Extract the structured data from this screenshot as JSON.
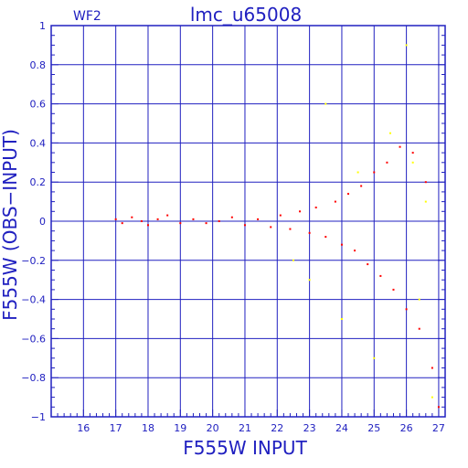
{
  "chart_data": {
    "type": "scatter",
    "panel_label": "WF2",
    "title": "lmc_u65008",
    "xlabel": "F555W  INPUT",
    "ylabel": "F555W  (OBS−INPUT)",
    "xlim": [
      15,
      27.2
    ],
    "ylim": [
      -1,
      1
    ],
    "x_ticks": [
      16,
      17,
      18,
      19,
      20,
      21,
      22,
      23,
      24,
      25,
      26,
      27
    ],
    "y_ticks": [
      -1,
      -0.8,
      -0.6,
      -0.4,
      -0.2,
      0,
      0.2,
      0.4,
      0.6,
      0.8,
      1
    ],
    "x_tick_labels": [
      "16",
      "17",
      "18",
      "19",
      "20",
      "21",
      "22",
      "23",
      "24",
      "25",
      "26",
      "27"
    ],
    "y_tick_labels": [
      "−1",
      "−0.8",
      "−0.6",
      "−0.4",
      "−0.2",
      "0",
      "0.2",
      "0.4",
      "0.6",
      "0.8",
      "1"
    ],
    "grid": true,
    "series": [
      {
        "color": "#ff0000",
        "points": [
          [
            17.0,
            0.01
          ],
          [
            17.2,
            -0.01
          ],
          [
            17.5,
            0.02
          ],
          [
            17.8,
            0.0
          ],
          [
            18.0,
            -0.02
          ],
          [
            18.3,
            0.01
          ],
          [
            18.6,
            0.03
          ],
          [
            19.0,
            -0.01
          ],
          [
            19.4,
            0.01
          ],
          [
            19.8,
            -0.01
          ],
          [
            20.2,
            0.0
          ],
          [
            20.6,
            0.02
          ],
          [
            21.0,
            -0.02
          ],
          [
            21.4,
            0.01
          ],
          [
            21.8,
            -0.03
          ],
          [
            22.1,
            0.03
          ],
          [
            22.4,
            -0.04
          ],
          [
            22.7,
            0.05
          ],
          [
            23.0,
            -0.06
          ],
          [
            23.2,
            0.07
          ],
          [
            23.5,
            -0.08
          ],
          [
            23.8,
            0.1
          ],
          [
            24.0,
            -0.12
          ],
          [
            24.2,
            0.14
          ],
          [
            24.4,
            -0.15
          ],
          [
            24.6,
            0.18
          ],
          [
            24.8,
            -0.22
          ],
          [
            25.0,
            0.25
          ],
          [
            25.2,
            -0.28
          ],
          [
            25.4,
            0.3
          ],
          [
            25.6,
            -0.35
          ],
          [
            25.8,
            0.38
          ],
          [
            26.0,
            -0.45
          ],
          [
            26.2,
            0.35
          ],
          [
            26.4,
            -0.55
          ],
          [
            26.6,
            0.2
          ],
          [
            26.8,
            -0.75
          ],
          [
            27.0,
            -0.95
          ]
        ]
      },
      {
        "color": "#ffff00",
        "points": [
          [
            22.5,
            -0.2
          ],
          [
            23.0,
            -0.3
          ],
          [
            23.5,
            0.6
          ],
          [
            24.0,
            -0.5
          ],
          [
            24.5,
            0.25
          ],
          [
            25.0,
            -0.7
          ],
          [
            25.5,
            0.45
          ],
          [
            26.0,
            0.9
          ],
          [
            26.2,
            0.3
          ],
          [
            26.4,
            -0.4
          ],
          [
            26.6,
            0.1
          ],
          [
            26.8,
            -0.9
          ]
        ]
      }
    ]
  }
}
